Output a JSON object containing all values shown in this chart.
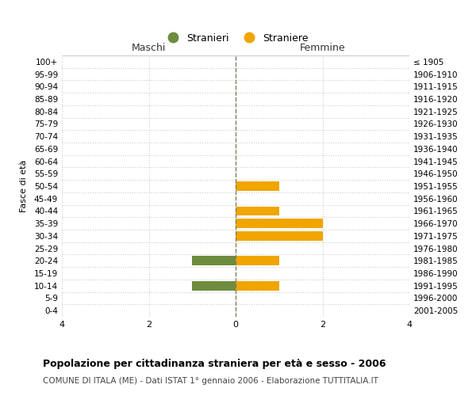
{
  "age_groups": [
    "0-4",
    "5-9",
    "10-14",
    "15-19",
    "20-24",
    "25-29",
    "30-34",
    "35-39",
    "40-44",
    "45-49",
    "50-54",
    "55-59",
    "60-64",
    "65-69",
    "70-74",
    "75-79",
    "80-84",
    "85-89",
    "90-94",
    "95-99",
    "100+"
  ],
  "birth_years": [
    "2001-2005",
    "1996-2000",
    "1991-1995",
    "1986-1990",
    "1981-1985",
    "1976-1980",
    "1971-1975",
    "1966-1970",
    "1961-1965",
    "1956-1960",
    "1951-1955",
    "1946-1950",
    "1941-1945",
    "1936-1940",
    "1931-1935",
    "1926-1930",
    "1921-1925",
    "1916-1920",
    "1911-1915",
    "1906-1910",
    "≤ 1905"
  ],
  "maschi": [
    0,
    0,
    -1,
    0,
    -1,
    0,
    0,
    0,
    0,
    0,
    0,
    0,
    0,
    0,
    0,
    0,
    0,
    0,
    0,
    0,
    0
  ],
  "femmine": [
    0,
    0,
    1,
    0,
    1,
    0,
    2,
    2,
    1,
    0,
    1,
    0,
    0,
    0,
    0,
    0,
    0,
    0,
    0,
    0,
    0
  ],
  "color_maschi": "#6d8c3e",
  "color_femmine": "#f0a500",
  "xlim": [
    -4,
    4
  ],
  "xticks": [
    -4,
    -2,
    0,
    2,
    4
  ],
  "xticklabels": [
    "4",
    "2",
    "0",
    "2",
    "4"
  ],
  "title": "Popolazione per cittadinanza straniera per età e sesso - 2006",
  "subtitle": "COMUNE DI ITALA (ME) - Dati ISTAT 1° gennaio 2006 - Elaborazione TUTTITALIA.IT",
  "ylabel_left": "Fasce di età",
  "label_maschi": "Stranieri",
  "label_femmine": "Straniere",
  "header_left": "Maschi",
  "header_right": "Femmine",
  "bar_height": 0.75,
  "background_color": "#ffffff",
  "grid_color": "#cccccc",
  "dashed_line_color": "#808060"
}
